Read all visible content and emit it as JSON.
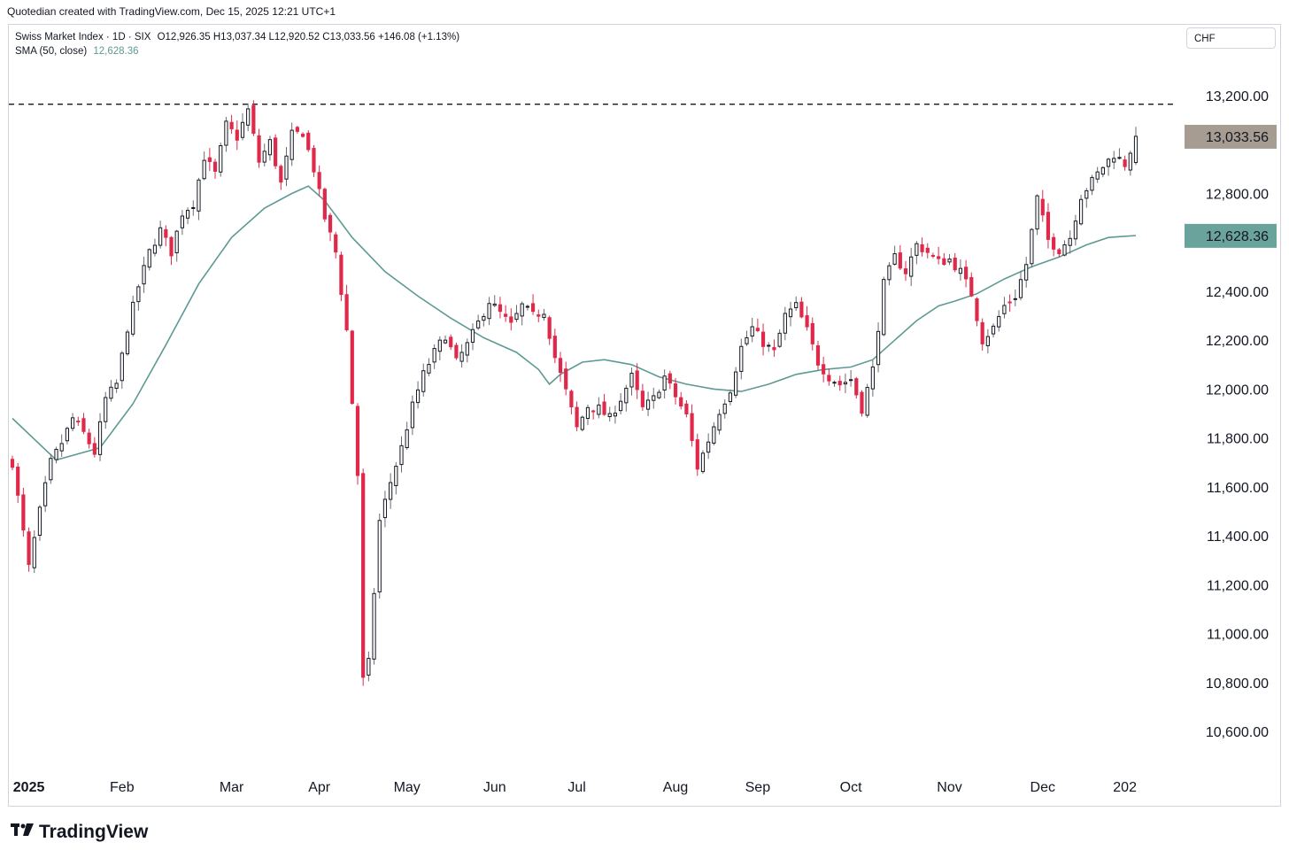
{
  "header": {
    "credit": "Quotedian created with TradingView.com, Dec 15, 2025 12:21 UTC+1"
  },
  "legend": {
    "symbol": "Swiss Market Index · 1D · SIX",
    "ohlc": "O12,926.35 H13,037.34 L12,920.52 C13,033.56 +146.08 (+1.13%)",
    "indicator": "SMA (50, close)",
    "indicator_value": "12,628.36"
  },
  "currency": "CHF",
  "brand": {
    "name": "TradingView",
    "logo": "17"
  },
  "colors": {
    "up": "#131722",
    "down": "#e0294a",
    "sma": "#5d9a93",
    "last_label": "#a69c92",
    "sma_label": "#6aa39b",
    "grid_text": "#131722"
  },
  "chart_data": {
    "type": "candlestick",
    "title": "Swiss Market Index · 1D · SIX",
    "ylabel": "CHF",
    "ylim": [
      10500,
      13350
    ],
    "y_ticks": [
      "10,600.00",
      "10,800.00",
      "11,000.00",
      "11,200.00",
      "11,400.00",
      "11,600.00",
      "11,800.00",
      "12,000.00",
      "12,200.00",
      "12,400.00",
      "12,800.00",
      "13,200.00"
    ],
    "y_tick_values": [
      10600,
      10800,
      11000,
      11200,
      11400,
      11600,
      11800,
      12000,
      12200,
      12400,
      12800,
      13200
    ],
    "x_ticks": [
      "2025",
      "Feb",
      "Mar",
      "Apr",
      "May",
      "Jun",
      "Jul",
      "Aug",
      "Sep",
      "Oct",
      "Nov",
      "Dec",
      "202"
    ],
    "last_price_label": "13,033.56",
    "last_price": 13033.56,
    "sma_label": "12,628.36",
    "sma_value": 12628.36,
    "resistance_level": 13165,
    "close_path": [
      [
        0,
        11700
      ],
      [
        3,
        11270
      ],
      [
        5,
        11500
      ],
      [
        7,
        11700
      ],
      [
        9,
        11780
      ],
      [
        11,
        11880
      ],
      [
        13,
        11820
      ],
      [
        15,
        11740
      ],
      [
        17,
        11960
      ],
      [
        19,
        12020
      ],
      [
        21,
        12250
      ],
      [
        23,
        12420
      ],
      [
        25,
        12560
      ],
      [
        27,
        12650
      ],
      [
        29,
        12560
      ],
      [
        31,
        12720
      ],
      [
        33,
        12760
      ],
      [
        35,
        12950
      ],
      [
        37,
        12880
      ],
      [
        39,
        13080
      ],
      [
        41,
        13030
      ],
      [
        43,
        13140
      ],
      [
        45,
        12930
      ],
      [
        47,
        13010
      ],
      [
        49,
        12840
      ],
      [
        51,
        13040
      ],
      [
        53,
        13050
      ],
      [
        55,
        12900
      ],
      [
        57,
        12700
      ],
      [
        59,
        12560
      ],
      [
        61,
        12240
      ],
      [
        63,
        11650
      ],
      [
        64,
        10810
      ],
      [
        65,
        10880
      ],
      [
        67,
        11460
      ],
      [
        69,
        11620
      ],
      [
        71,
        11760
      ],
      [
        73,
        11930
      ],
      [
        75,
        12060
      ],
      [
        77,
        12150
      ],
      [
        79,
        12220
      ],
      [
        81,
        12110
      ],
      [
        83,
        12180
      ],
      [
        85,
        12270
      ],
      [
        87,
        12360
      ],
      [
        89,
        12310
      ],
      [
        91,
        12260
      ],
      [
        93,
        12340
      ],
      [
        95,
        12300
      ],
      [
        97,
        12320
      ],
      [
        99,
        12130
      ],
      [
        101,
        11990
      ],
      [
        103,
        11840
      ],
      [
        105,
        11930
      ],
      [
        107,
        11920
      ],
      [
        109,
        11880
      ],
      [
        111,
        11960
      ],
      [
        113,
        12050
      ],
      [
        115,
        11920
      ],
      [
        117,
        11960
      ],
      [
        119,
        12050
      ],
      [
        121,
        11970
      ],
      [
        123,
        11890
      ],
      [
        125,
        11680
      ],
      [
        127,
        11790
      ],
      [
        129,
        11910
      ],
      [
        131,
        12000
      ],
      [
        133,
        12170
      ],
      [
        135,
        12250
      ],
      [
        137,
        12190
      ],
      [
        139,
        12150
      ],
      [
        141,
        12300
      ],
      [
        143,
        12340
      ],
      [
        145,
        12240
      ],
      [
        147,
        12110
      ],
      [
        149,
        12050
      ],
      [
        151,
        12020
      ],
      [
        153,
        12040
      ],
      [
        155,
        11920
      ],
      [
        157,
        12080
      ],
      [
        159,
        12430
      ],
      [
        161,
        12540
      ],
      [
        163,
        12480
      ],
      [
        165,
        12590
      ],
      [
        167,
        12560
      ],
      [
        169,
        12520
      ],
      [
        171,
        12530
      ],
      [
        173,
        12480
      ],
      [
        175,
        12390
      ],
      [
        177,
        12200
      ],
      [
        179,
        12250
      ],
      [
        181,
        12340
      ],
      [
        183,
        12380
      ],
      [
        185,
        12510
      ],
      [
        187,
        12780
      ],
      [
        189,
        12610
      ],
      [
        191,
        12570
      ],
      [
        193,
        12620
      ],
      [
        195,
        12790
      ],
      [
        197,
        12850
      ],
      [
        199,
        12910
      ],
      [
        201,
        12960
      ],
      [
        203,
        12920
      ],
      [
        205,
        13033
      ]
    ],
    "sma_path": [
      [
        0,
        11880
      ],
      [
        8,
        11710
      ],
      [
        16,
        11760
      ],
      [
        22,
        11940
      ],
      [
        28,
        12180
      ],
      [
        34,
        12430
      ],
      [
        40,
        12620
      ],
      [
        46,
        12740
      ],
      [
        51,
        12800
      ],
      [
        54,
        12830
      ],
      [
        57,
        12770
      ],
      [
        62,
        12620
      ],
      [
        68,
        12480
      ],
      [
        74,
        12380
      ],
      [
        80,
        12290
      ],
      [
        86,
        12210
      ],
      [
        92,
        12150
      ],
      [
        96,
        12080
      ],
      [
        98,
        12020
      ],
      [
        100,
        12060
      ],
      [
        104,
        12110
      ],
      [
        108,
        12120
      ],
      [
        113,
        12100
      ],
      [
        118,
        12050
      ],
      [
        123,
        12020
      ],
      [
        128,
        12000
      ],
      [
        133,
        11990
      ],
      [
        138,
        12020
      ],
      [
        143,
        12060
      ],
      [
        148,
        12080
      ],
      [
        153,
        12090
      ],
      [
        157,
        12120
      ],
      [
        161,
        12200
      ],
      [
        165,
        12280
      ],
      [
        169,
        12340
      ],
      [
        172,
        12360
      ],
      [
        176,
        12390
      ],
      [
        181,
        12450
      ],
      [
        186,
        12500
      ],
      [
        191,
        12540
      ],
      [
        196,
        12590
      ],
      [
        200,
        12620
      ],
      [
        205,
        12628
      ]
    ],
    "x_tick_index": [
      3,
      20,
      40,
      56,
      72,
      88,
      103,
      121,
      136,
      153,
      171,
      188,
      203
    ]
  }
}
